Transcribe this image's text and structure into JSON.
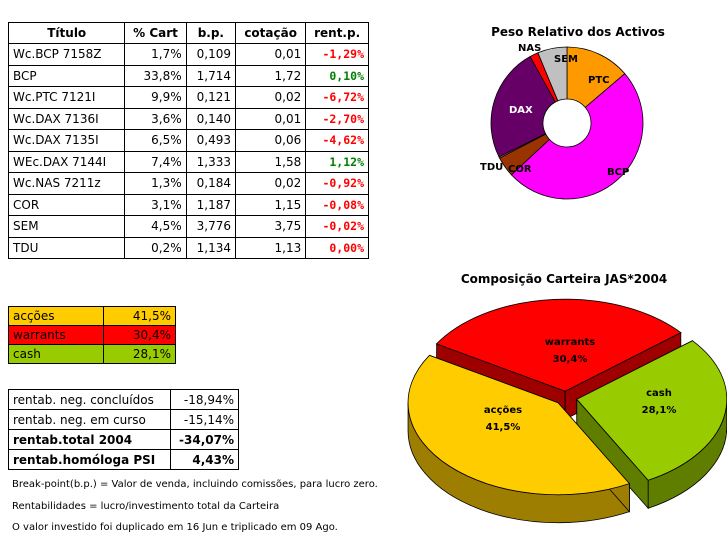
{
  "portfolio_table": {
    "headers": [
      "Título",
      "% Cart",
      "b.p.",
      "cotação",
      "rent.p."
    ],
    "rows": [
      {
        "name": "Wc.BCP 7158Z",
        "pct": "1,7%",
        "bp": "0,109",
        "quote": "0,01",
        "rent": "-1,29%",
        "status_color": "#ff0000"
      },
      {
        "name": "BCP",
        "pct": "33,8%",
        "bp": "1,714",
        "quote": "1,72",
        "rent": "0,10%",
        "status_color": "#008000"
      },
      {
        "name": "Wc.PTC 7121I",
        "pct": "9,9%",
        "bp": "0,121",
        "quote": "0,02",
        "rent": "-6,72%",
        "status_color": "#ff0000"
      },
      {
        "name": "Wc.DAX 7136I",
        "pct": "3,6%",
        "bp": "0,140",
        "quote": "0,01",
        "rent": "-2,70%",
        "status_color": "#ff0000"
      },
      {
        "name": "Wc.DAX 7135I",
        "pct": "6,5%",
        "bp": "0,493",
        "quote": "0,06",
        "rent": "-4,62%",
        "status_color": "#ff0000"
      },
      {
        "name": "WEc.DAX 7144I",
        "pct": "7,4%",
        "bp": "1,333",
        "quote": "1,58",
        "rent": "1,12%",
        "status_color": "#008000"
      },
      {
        "name": "Wc.NAS 7211z",
        "pct": "1,3%",
        "bp": "0,184",
        "quote": "0,02",
        "rent": "-0,92%",
        "status_color": "#ff0000"
      },
      {
        "name": "COR",
        "pct": "3,1%",
        "bp": "1,187",
        "quote": "1,15",
        "rent": "-0,08%",
        "status_color": "#ff0000"
      },
      {
        "name": "SEM",
        "pct": "4,5%",
        "bp": "3,776",
        "quote": "3,75",
        "rent": "-0,02%",
        "status_color": "#ff0000"
      },
      {
        "name": "TDU",
        "pct": "0,2%",
        "bp": "1,134",
        "quote": "1,13",
        "rent": "0,00%",
        "status_color": "#ff0000"
      }
    ]
  },
  "allocation_table": [
    {
      "label": "acções",
      "value": "41,5%",
      "color": "#ffcc00"
    },
    {
      "label": "warrants",
      "value": "30,4%",
      "color": "#ff0000"
    },
    {
      "label": "cash",
      "value": "28,1%",
      "color": "#99cc00"
    }
  ],
  "returns_table": [
    {
      "label": "rentab. neg. concluídos",
      "value": "-18,94%"
    },
    {
      "label": "rentab. neg. em curso",
      "value": "-15,14%"
    },
    {
      "label": "rentab.total 2004",
      "value": "-34,07%"
    },
    {
      "label": "rentab.homóloga PSI",
      "value": "4,43%"
    }
  ],
  "notes": [
    "Break-point(b.p.) = Valor de venda, incluindo comissões, para lucro zero.",
    "Rentabilidades = lucro/investimento total da Carteira",
    "O valor investido foi duplicado em 16 Jun e triplicado em 09 Ago."
  ],
  "chart_data": [
    {
      "type": "pie",
      "variant": "doughnut",
      "title": "Peso Relativo dos Activos",
      "categories": [
        "PTC",
        "BCP",
        "COR",
        "TDU",
        "DAX",
        "NAS",
        "SEM"
      ],
      "values": [
        9.9,
        35.5,
        3.1,
        0.2,
        17.5,
        1.3,
        4.5
      ],
      "colors": [
        "#ff9900",
        "#ff00ff",
        "#993300",
        "#ff9999",
        "#660066",
        "#ff0000",
        "#c0c0c0"
      ]
    },
    {
      "type": "pie",
      "variant": "3d-exploded",
      "title": "Composição Carteira JAS*2004",
      "categories": [
        "warrants",
        "cash",
        "acções"
      ],
      "values": [
        30.4,
        28.1,
        41.5
      ],
      "value_labels": [
        "30,4%",
        "28,1%",
        "41,5%"
      ],
      "colors": [
        "#ff0000",
        "#99cc00",
        "#ffcc00"
      ]
    }
  ]
}
